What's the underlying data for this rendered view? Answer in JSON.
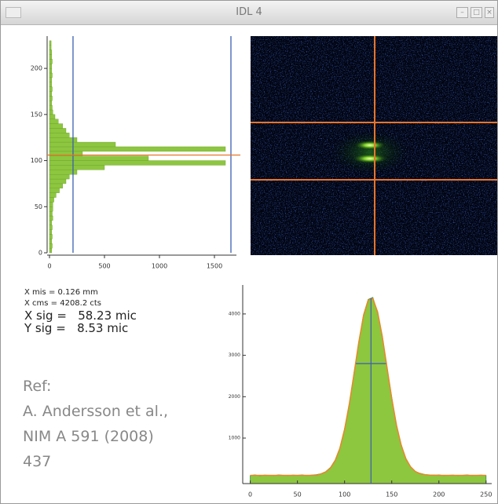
{
  "window": {
    "title": "IDL 4"
  },
  "chart_data": [
    {
      "type": "histogram",
      "orientation": "horizontal",
      "color": "#8dc63f",
      "bins": [
        0,
        5,
        10,
        15,
        20,
        25,
        30,
        35,
        40,
        45,
        50,
        55,
        60,
        65,
        70,
        75,
        80,
        85,
        90,
        95,
        100,
        105,
        110,
        115,
        120,
        125,
        130,
        135,
        140,
        145,
        150,
        155,
        160,
        165,
        170,
        175,
        180,
        185,
        190,
        195,
        200,
        205,
        210,
        215,
        220,
        225,
        230
      ],
      "values": [
        20,
        25,
        20,
        25,
        20,
        25,
        20,
        30,
        25,
        30,
        30,
        40,
        60,
        90,
        120,
        150,
        180,
        250,
        500,
        1600,
        900,
        300,
        1600,
        600,
        250,
        180,
        150,
        120,
        80,
        50,
        30,
        25,
        20,
        25,
        20,
        25,
        20,
        20,
        25,
        20,
        20,
        25,
        20,
        20,
        15,
        15
      ],
      "xlim": [
        0,
        1700
      ],
      "xticks": [
        0,
        500,
        1000,
        1500
      ],
      "ylim": [
        0,
        235
      ],
      "yticks": [
        0,
        50,
        100,
        150,
        200
      ],
      "vlines": [
        214,
        1650
      ],
      "hline": 106
    },
    {
      "type": "line",
      "color": "#8dc63f",
      "fit_color": "#e8882a",
      "x": [
        0,
        5,
        10,
        15,
        20,
        25,
        30,
        35,
        40,
        45,
        50,
        55,
        60,
        65,
        70,
        75,
        80,
        85,
        90,
        95,
        100,
        105,
        110,
        115,
        120,
        125,
        130,
        135,
        140,
        145,
        150,
        155,
        160,
        165,
        170,
        175,
        180,
        185,
        190,
        195,
        200,
        205,
        210,
        215,
        220,
        225,
        230,
        235,
        240,
        245,
        250
      ],
      "values": [
        95,
        110,
        90,
        105,
        100,
        95,
        110,
        100,
        95,
        105,
        100,
        110,
        95,
        105,
        115,
        140,
        190,
        290,
        470,
        760,
        1230,
        1800,
        2580,
        3300,
        3980,
        4350,
        4400,
        4030,
        3470,
        2690,
        1990,
        1300,
        850,
        490,
        310,
        190,
        150,
        120,
        105,
        100,
        110,
        95,
        100,
        105,
        95,
        100,
        110,
        95,
        100,
        105,
        95
      ],
      "fit": [
        100,
        100,
        100,
        100,
        100,
        100,
        100,
        100,
        100,
        100,
        100,
        100,
        100,
        100,
        100,
        133,
        180,
        276,
        453,
        754,
        1208,
        1822,
        2554,
        3311,
        3949,
        4332,
        4370,
        4051,
        3452,
        2708,
        1962,
        1318,
        832,
        502,
        304,
        194,
        140,
        117,
        107,
        103,
        100,
        100,
        100,
        100,
        100,
        100,
        100,
        100,
        100,
        100,
        100
      ],
      "xlim": [
        -8,
        256
      ],
      "xticks": [
        0,
        50,
        100,
        150,
        200,
        250
      ],
      "ylim": [
        -100,
        4700
      ],
      "yticks": [
        1000,
        2000,
        3000,
        4000
      ],
      "center": 128,
      "level": 2800,
      "level_range": [
        112,
        144
      ]
    }
  ],
  "stats": [
    "X mis = 0.126 mm",
    "X cms = 4208.2 cts",
    "X sig =   58.23 mic",
    "Y sig =   8.53 mic"
  ],
  "reference": [
    "Ref:",
    "A. Andersson et al.,",
    "NIM A 591 (2008)",
    "437"
  ]
}
